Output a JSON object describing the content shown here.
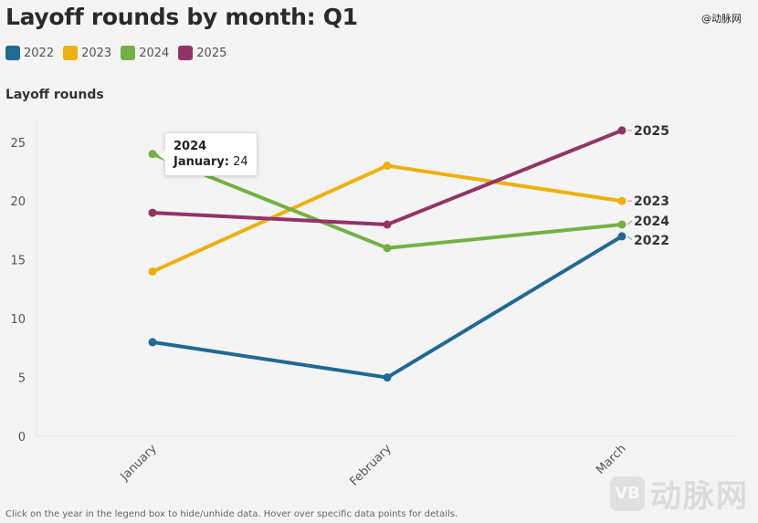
{
  "title": "Layoff rounds by month: Q1",
  "watermark_top": "@动脉网",
  "watermark_logo": {
    "box": "VB",
    "text": "动脉网"
  },
  "footnote": "Click on the year in the legend box to hide/unhide data. Hover over specific data points for details.",
  "tooltip": {
    "series": "2024",
    "category": "January:",
    "value": "24"
  },
  "chart_data": {
    "type": "line",
    "categories": [
      "January",
      "February",
      "March"
    ],
    "ylabel": "Layoff rounds",
    "ylim": [
      0,
      27
    ],
    "yticks": [
      "0",
      "5",
      "10",
      "15",
      "20",
      "25"
    ],
    "legend_placement": "top-left",
    "grid": false,
    "series": [
      {
        "name": "2022",
        "color": "#1f6a94",
        "values": [
          8,
          5,
          17
        ]
      },
      {
        "name": "2023",
        "color": "#eeb00d",
        "values": [
          14,
          23,
          20
        ]
      },
      {
        "name": "2024",
        "color": "#74b143",
        "values": [
          24,
          16,
          18
        ]
      },
      {
        "name": "2025",
        "color": "#933368",
        "values": [
          19,
          18,
          26
        ]
      }
    ]
  }
}
